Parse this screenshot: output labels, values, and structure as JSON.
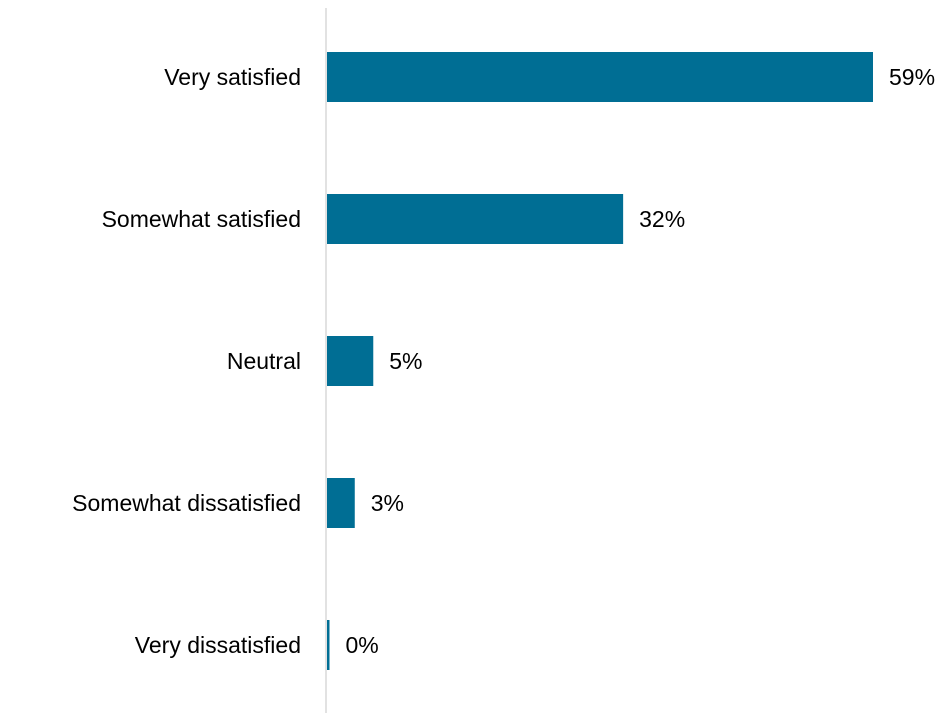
{
  "chart_data": {
    "type": "bar",
    "orientation": "horizontal",
    "categories": [
      "Very satisfied",
      "Somewhat satisfied",
      "Neutral",
      "Somewhat dissatisfied",
      "Very dissatisfied"
    ],
    "values": [
      59,
      32,
      5,
      3,
      0
    ],
    "value_labels": [
      "59%",
      "32%",
      "5%",
      "3%",
      "0%"
    ],
    "xlim": [
      0,
      59
    ],
    "grid": false,
    "legend": "none",
    "colors": {
      "bar": "#006E94",
      "axis": "#D9D9D9",
      "text": "#000000"
    }
  }
}
